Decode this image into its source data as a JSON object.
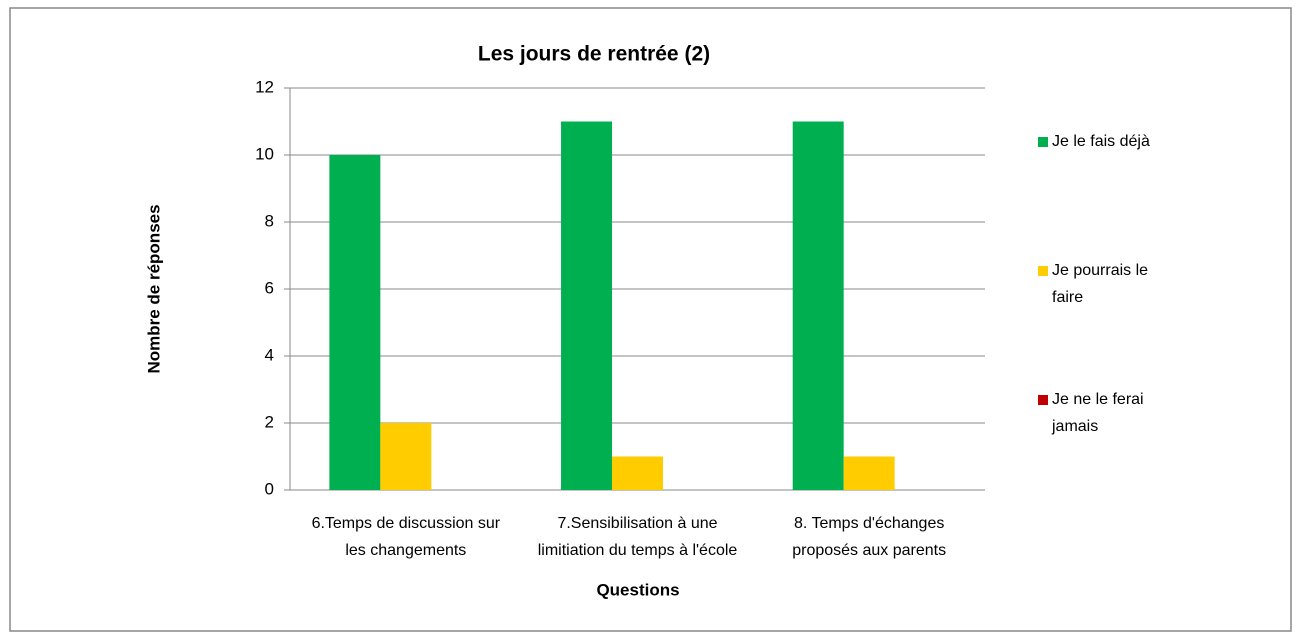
{
  "chart_data": {
    "type": "bar",
    "title": "Les jours de rentrée (2)",
    "x_label": "Questions",
    "y_label": "Nombre de réponses",
    "categories": [
      "6.Temps de discussion sur les changements",
      "7.Sensibilisation à une limitiation du temps à l'école",
      "8. Temps d'échanges proposés aux parents"
    ],
    "series": [
      {
        "name": "Je le fais déjà",
        "color": "#00b050",
        "values": [
          10,
          11,
          11
        ]
      },
      {
        "name": "Je pourrais le faire",
        "color": "#ffcc00",
        "values": [
          2,
          1,
          1
        ]
      },
      {
        "name": "Je ne le ferai jamais",
        "color": "#c00000",
        "values": [
          0,
          0,
          0
        ]
      }
    ],
    "ylim": [
      0,
      12
    ],
    "yticks": [
      0,
      2,
      4,
      6,
      8,
      10,
      12
    ],
    "grid": true,
    "legend": "right"
  }
}
